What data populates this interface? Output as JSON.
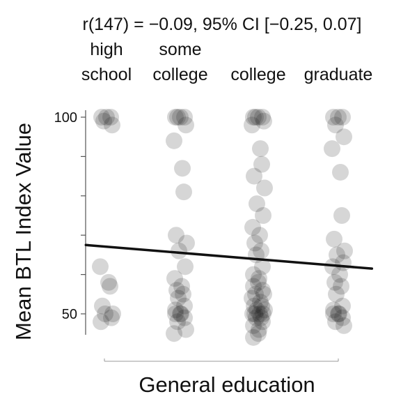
{
  "chart_data": {
    "type": "scatter",
    "title": "r(147) = −0.09, 95% CI [−0.25, 0.07]",
    "xlabel": "General education",
    "ylabel": "Mean BTL Index Value",
    "categories": [
      {
        "lines": [
          "high",
          "school"
        ]
      },
      {
        "lines": [
          "some",
          "college"
        ]
      },
      {
        "lines": [
          "college"
        ]
      },
      {
        "lines": [
          "graduate"
        ]
      }
    ],
    "ylim": [
      42,
      106
    ],
    "yticks": [
      {
        "value": 100,
        "label": "100"
      },
      {
        "value": 90,
        "label": ""
      },
      {
        "value": 80,
        "label": ""
      },
      {
        "value": 70,
        "label": ""
      },
      {
        "value": 60,
        "label": ""
      },
      {
        "value": 50,
        "label": "50"
      }
    ],
    "trend_line": {
      "x_start": 0.72,
      "y_start": 67.5,
      "x_end": 4.42,
      "y_end": 61.5
    },
    "point_color": "#1a1a1a",
    "points": [
      {
        "x": 1,
        "values": [
          100,
          100,
          100,
          99,
          98,
          62,
          58,
          57,
          52,
          50,
          50,
          49,
          48
        ]
      },
      {
        "x": 2,
        "values": [
          100,
          100,
          100,
          100,
          98,
          94,
          87,
          81,
          70,
          68,
          66,
          62,
          59,
          57,
          56,
          55,
          54,
          52,
          51,
          50,
          50,
          50,
          49,
          48,
          46,
          45
        ]
      },
      {
        "x": 3,
        "values": [
          100,
          100,
          100,
          100,
          99,
          98,
          92,
          88,
          85,
          82,
          78,
          75,
          72,
          70,
          68,
          66,
          65,
          62,
          60,
          59,
          58,
          57,
          56,
          55,
          55,
          54,
          53,
          52,
          52,
          51,
          51,
          50,
          50,
          50,
          50,
          49,
          49,
          48,
          47,
          46,
          45,
          44
        ]
      },
      {
        "x": 4,
        "values": [
          100,
          100,
          100,
          98,
          95,
          92,
          86,
          75,
          69,
          66,
          65,
          63,
          62,
          60,
          58,
          57,
          55,
          52,
          51,
          50,
          50,
          50,
          49,
          48,
          47
        ]
      }
    ]
  }
}
